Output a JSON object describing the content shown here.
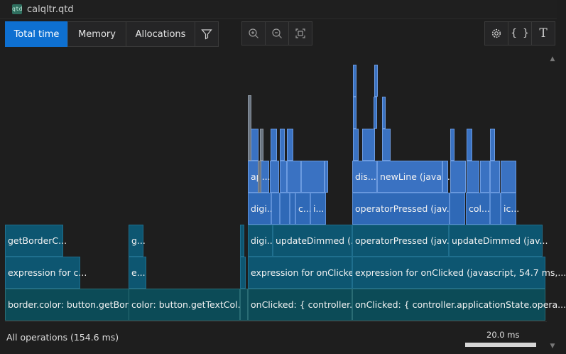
{
  "window": {
    "file_name": "calqltr.qtd",
    "app_icon_label": "qtd"
  },
  "toolbar": {
    "tabs": [
      {
        "label": "Total time",
        "active": true
      },
      {
        "label": "Memory",
        "active": false
      },
      {
        "label": "Allocations",
        "active": false
      }
    ],
    "icons": [
      "filter-icon",
      "zoom-in-icon",
      "zoom-out-icon",
      "fit-icon",
      "settings-icon",
      "braces-icon",
      "text-icon"
    ]
  },
  "flamegraph": {
    "rows": {
      "bottom": [
        {
          "label": "border.color: button.getBor..."
        },
        {
          "label": "color: button.getTextCol..."
        },
        {
          "label": "onClicked: { controller...."
        },
        {
          "label": "onClicked: { controller.applicationState.opera..."
        }
      ],
      "row2": [
        {
          "label": "expression for c..."
        },
        {
          "label": "e..."
        },
        {
          "label": "expression for onClicke..."
        },
        {
          "label": "expression for onClicked (javascript, 54.7 ms,..."
        }
      ],
      "row3": [
        {
          "label": "getBorderC..."
        },
        {
          "label": "g..."
        },
        {
          "label": "digi..."
        },
        {
          "label": "updateDimmed (..."
        },
        {
          "label": "operatorPressed (jav..."
        },
        {
          "label": "updateDimmed (jav..."
        }
      ],
      "row4": [
        {
          "label": "digi..."
        },
        {
          "label": "c..."
        },
        {
          "label": "i..."
        },
        {
          "label": "operatorPressed (jav..."
        },
        {
          "label": "col..."
        },
        {
          "label": "ic..."
        }
      ],
      "row5": [
        {
          "label": "ap..."
        },
        {
          "label": "dis..."
        },
        {
          "label": "newLine (java..."
        }
      ]
    }
  },
  "footer": {
    "summary": "All operations (154.6 ms)",
    "scale_label": "20.0 ms"
  }
}
